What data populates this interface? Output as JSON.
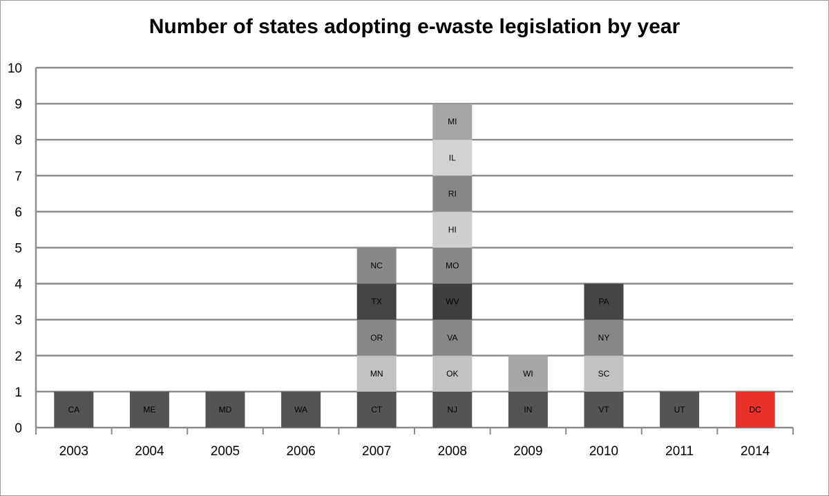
{
  "chart_data": {
    "type": "bar",
    "stacked": true,
    "title": "Number of states adopting  e-waste  legislation  by year",
    "xlabel": "",
    "ylabel": "",
    "ylim": [
      0,
      10
    ],
    "yticks": [
      "0",
      "1",
      "2",
      "3",
      "4",
      "5",
      "6",
      "7",
      "8",
      "9",
      "10"
    ],
    "grid": true,
    "categories": [
      "2003",
      "2004",
      "2005",
      "2006",
      "2007",
      "2008",
      "2009",
      "2010",
      "2011",
      "2014"
    ],
    "values": [
      1,
      1,
      1,
      1,
      5,
      9,
      2,
      4,
      1,
      1
    ],
    "segments": [
      [
        {
          "label": "CA",
          "color": "#545454"
        }
      ],
      [
        {
          "label": "ME",
          "color": "#545454"
        }
      ],
      [
        {
          "label": "MD",
          "color": "#545454"
        }
      ],
      [
        {
          "label": "WA",
          "color": "#545454"
        }
      ],
      [
        {
          "label": "CT",
          "color": "#545454"
        },
        {
          "label": "MN",
          "color": "#c2c2c2"
        },
        {
          "label": "OR",
          "color": "#878787"
        },
        {
          "label": "TX",
          "color": "#454545"
        },
        {
          "label": "NC",
          "color": "#878787"
        }
      ],
      [
        {
          "label": "NJ",
          "color": "#545454"
        },
        {
          "label": "OK",
          "color": "#c2c2c2"
        },
        {
          "label": "VA",
          "color": "#878787"
        },
        {
          "label": "WV",
          "color": "#3f3f3f"
        },
        {
          "label": "MO",
          "color": "#878787"
        },
        {
          "label": "HI",
          "color": "#cfcfcf"
        },
        {
          "label": "RI",
          "color": "#878787"
        },
        {
          "label": "IL",
          "color": "#d2d2d2"
        },
        {
          "label": "MI",
          "color": "#a6a6a6"
        }
      ],
      [
        {
          "label": "IN",
          "color": "#545454"
        },
        {
          "label": "WI",
          "color": "#a6a6a6"
        }
      ],
      [
        {
          "label": "VT",
          "color": "#545454"
        },
        {
          "label": "SC",
          "color": "#c2c2c2"
        },
        {
          "label": "NY",
          "color": "#878787"
        },
        {
          "label": "PA",
          "color": "#454545"
        }
      ],
      [
        {
          "label": "UT",
          "color": "#545454"
        }
      ],
      [
        {
          "label": "DC",
          "color": "#e8312a"
        }
      ]
    ],
    "colors": {
      "gridline": "#8c8c8c",
      "axis": "#8c8c8c",
      "highlight": "#e8312a"
    }
  }
}
